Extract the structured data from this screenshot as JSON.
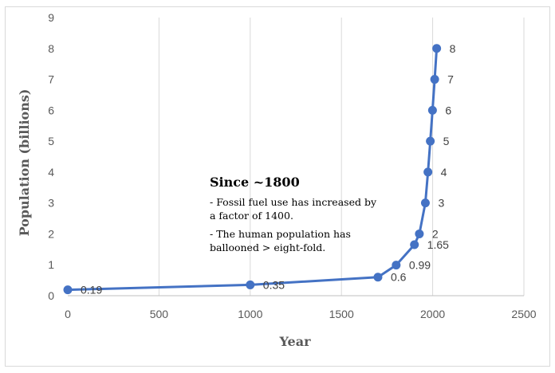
{
  "chart_data": {
    "type": "line",
    "title": "",
    "xlabel": "Year",
    "ylabel": "Population (billions)",
    "xlim": [
      0,
      2500
    ],
    "ylim": [
      0,
      9
    ],
    "x_ticks": [
      0,
      500,
      1000,
      1500,
      2000,
      2500
    ],
    "y_ticks": [
      0,
      1,
      2,
      3,
      4,
      5,
      6,
      7,
      8,
      9
    ],
    "grid": "vertical",
    "series": [
      {
        "color": "#4472C4",
        "points": [
          {
            "x": 0,
            "y": 0.19,
            "label": "0.19"
          },
          {
            "x": 1000,
            "y": 0.35,
            "label": "0.35"
          },
          {
            "x": 1700,
            "y": 0.6,
            "label": "0.6"
          },
          {
            "x": 1800,
            "y": 0.99,
            "label": "0.99"
          },
          {
            "x": 1900,
            "y": 1.65,
            "label": "1.65"
          },
          {
            "x": 1927,
            "y": 2,
            "label": "2"
          },
          {
            "x": 1960,
            "y": 3,
            "label": "3"
          },
          {
            "x": 1974,
            "y": 4,
            "label": "4"
          },
          {
            "x": 1987,
            "y": 5,
            "label": "5"
          },
          {
            "x": 1999,
            "y": 6,
            "label": "6"
          },
          {
            "x": 2011,
            "y": 7,
            "label": "7"
          },
          {
            "x": 2022,
            "y": 8,
            "label": "8"
          }
        ]
      }
    ],
    "annotation": {
      "title": "Since ~1800",
      "lines": [
        "- Fossil fuel use has increased by",
        "a factor of 1400.",
        "- The human population has",
        "ballooned  > eight-fold."
      ]
    }
  }
}
